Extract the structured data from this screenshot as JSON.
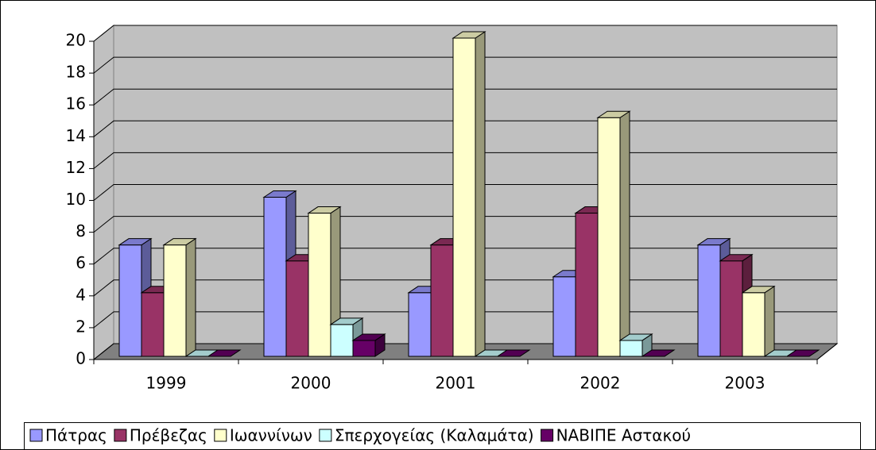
{
  "chart_data": {
    "type": "bar3d",
    "categories": [
      "1999",
      "2000",
      "2001",
      "2002",
      "2003"
    ],
    "series": [
      {
        "name": "Πάτρας",
        "color": "#9999ff",
        "values": [
          7,
          10,
          4,
          5,
          7
        ]
      },
      {
        "name": "Πρέβεζας",
        "color": "#993366",
        "values": [
          4,
          6,
          7,
          9,
          6
        ]
      },
      {
        "name": "Ιωαννίνων",
        "color": "#ffffcc",
        "values": [
          7,
          9,
          20,
          15,
          4
        ]
      },
      {
        "name": "Σπερχογείας (Καλαμάτα)",
        "color": "#ccffff",
        "values": [
          0,
          2,
          0,
          1,
          0
        ]
      },
      {
        "name": "ΝΑΒΙΠΕ Αστακού",
        "color": "#660066",
        "values": [
          0,
          1,
          0,
          0,
          0
        ]
      }
    ],
    "ylim": [
      0,
      20
    ],
    "yticks": [
      0,
      2,
      4,
      6,
      8,
      10,
      12,
      14,
      16,
      18,
      20
    ],
    "grid": true,
    "legend": "bottom"
  }
}
